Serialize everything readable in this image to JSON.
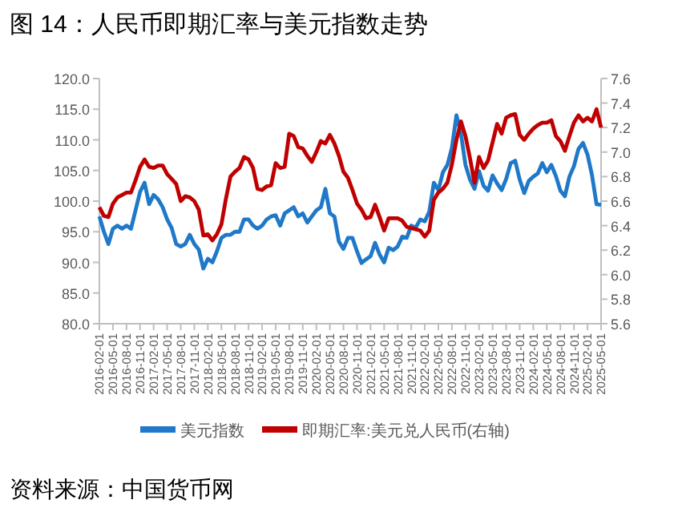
{
  "chart_data": {
    "type": "line",
    "title": "图 14：人民币即期汇率与美元指数走势",
    "categories": [
      "2016-02-01",
      null,
      null,
      "2016-05-01",
      null,
      null,
      "2016-08-01",
      null,
      null,
      "2016-11-01",
      null,
      null,
      "2017-02-01",
      null,
      null,
      "2017-05-01",
      null,
      null,
      "2017-08-01",
      null,
      null,
      "2017-11-01",
      null,
      null,
      "2018-02-01",
      null,
      null,
      "2018-05-01",
      null,
      null,
      "2018-08-01",
      null,
      null,
      "2018-11-01",
      null,
      null,
      "2019-02-01",
      null,
      null,
      "2019-05-01",
      null,
      null,
      "2019-08-01",
      null,
      null,
      "2019-11-01",
      null,
      null,
      "2020-02-01",
      null,
      null,
      "2020-05-01",
      null,
      null,
      "2020-08-01",
      null,
      null,
      "2020-11-01",
      null,
      null,
      "2021-02-01",
      null,
      null,
      "2021-05-01",
      null,
      null,
      "2021-08-01",
      null,
      null,
      "2021-11-01",
      null,
      null,
      "2022-02-01",
      null,
      null,
      "2022-05-01",
      null,
      null,
      "2022-08-01",
      null,
      null,
      "2022-11-01",
      null,
      null,
      "2023-02-01",
      null,
      null,
      "2023-05-01",
      null,
      null,
      "2023-08-01",
      null,
      null,
      "2023-11-01",
      null,
      null,
      "2024-02-01",
      null,
      null,
      "2024-05-01",
      null,
      null,
      "2024-08-01",
      null,
      null,
      "2024-11-01",
      null,
      null,
      "2025-02-01",
      null,
      null,
      "2025-05-01"
    ],
    "series": [
      {
        "name": "美元指数",
        "color": "#1f78c8",
        "values": [
          97.5,
          95,
          93,
          95.5,
          96,
          95.5,
          96,
          95.5,
          98.5,
          101.5,
          103,
          99.5,
          101,
          100.3,
          99,
          97,
          95.6,
          93,
          92.6,
          93,
          94.5,
          93,
          92.1,
          89,
          90.6,
          90,
          91.8,
          94,
          94.5,
          94.5,
          95,
          95,
          97,
          97,
          96,
          95.5,
          96,
          97,
          97.5,
          97.7,
          96,
          98,
          98.5,
          99,
          97.5,
          98,
          96.5,
          97.5,
          98.5,
          99,
          102,
          98,
          97.5,
          93.4,
          92.2,
          94,
          94,
          91.8,
          89.9,
          90.5,
          91,
          93.2,
          91.3,
          90,
          92.4,
          92,
          92.6,
          94.2,
          94,
          96,
          95.7,
          97,
          96.7,
          98.3,
          103,
          101.8,
          104.7,
          105.9,
          108.7,
          114,
          111,
          105.9,
          103.5,
          102,
          104.9,
          102.5,
          101.7,
          104.2,
          102.9,
          101.8,
          103.6,
          106.2,
          106.6,
          103.5,
          101.3,
          103.3,
          104,
          104.5,
          106.2,
          104.7,
          105.9,
          104.1,
          101.7,
          100.8,
          104,
          105.7,
          108.5,
          109.5,
          107.6,
          104.2,
          99.5,
          99.4
        ]
      },
      {
        "name": "即期汇率:美元兑人民币(右轴)",
        "color": "#c00000",
        "axis": "y2",
        "values": [
          6.55,
          6.48,
          6.47,
          6.58,
          6.63,
          6.65,
          6.67,
          6.67,
          6.77,
          6.88,
          6.94,
          6.88,
          6.87,
          6.89,
          6.89,
          6.82,
          6.78,
          6.74,
          6.6,
          6.64,
          6.63,
          6.6,
          6.53,
          6.32,
          6.33,
          6.28,
          6.33,
          6.41,
          6.62,
          6.8,
          6.84,
          6.87,
          6.96,
          6.94,
          6.87,
          6.7,
          6.69,
          6.72,
          6.73,
          6.91,
          6.87,
          6.88,
          7.15,
          7.13,
          7.04,
          7.03,
          6.97,
          6.92,
          7,
          7.09,
          7.07,
          7.14,
          7.07,
          6.97,
          6.84,
          6.79,
          6.69,
          6.58,
          6.53,
          6.46,
          6.47,
          6.57,
          6.47,
          6.36,
          6.46,
          6.46,
          6.46,
          6.44,
          6.39,
          6.38,
          6.37,
          6.36,
          6.31,
          6.36,
          6.61,
          6.67,
          6.7,
          6.75,
          6.9,
          7.1,
          7.25,
          7.13,
          6.95,
          6.75,
          6.96,
          6.87,
          6.93,
          7.08,
          7.23,
          7.15,
          7.28,
          7.3,
          7.31,
          7.14,
          7.1,
          7.15,
          7.19,
          7.22,
          7.24,
          7.24,
          7.26,
          7.13,
          7.09,
          7.01,
          7.13,
          7.24,
          7.3,
          7.25,
          7.28,
          7.25,
          7.35,
          7.2
        ]
      }
    ],
    "ylim": [
      80,
      120
    ],
    "yticks": [
      {
        "value": 80,
        "label": "80.0"
      },
      {
        "value": 85,
        "label": "85.0"
      },
      {
        "value": 90,
        "label": "90.0"
      },
      {
        "value": 95,
        "label": "95.0"
      },
      {
        "value": 100,
        "label": "100.0"
      },
      {
        "value": 105,
        "label": "105.0"
      },
      {
        "value": 110,
        "label": "110.0"
      },
      {
        "value": 115,
        "label": "115.0"
      },
      {
        "value": 120,
        "label": "120.0"
      }
    ],
    "y2lim": [
      5.6,
      7.6
    ],
    "y2ticks": [
      5.6,
      5.8,
      {
        "value": 6.0,
        "label": "6.0"
      },
      6.2,
      6.4,
      6.6,
      6.8,
      {
        "value": 7.0,
        "label": "7.0"
      },
      7.2,
      7.4,
      7.6
    ],
    "legend": "bottom",
    "annotations": [
      "资料来源：中国货币网"
    ]
  }
}
